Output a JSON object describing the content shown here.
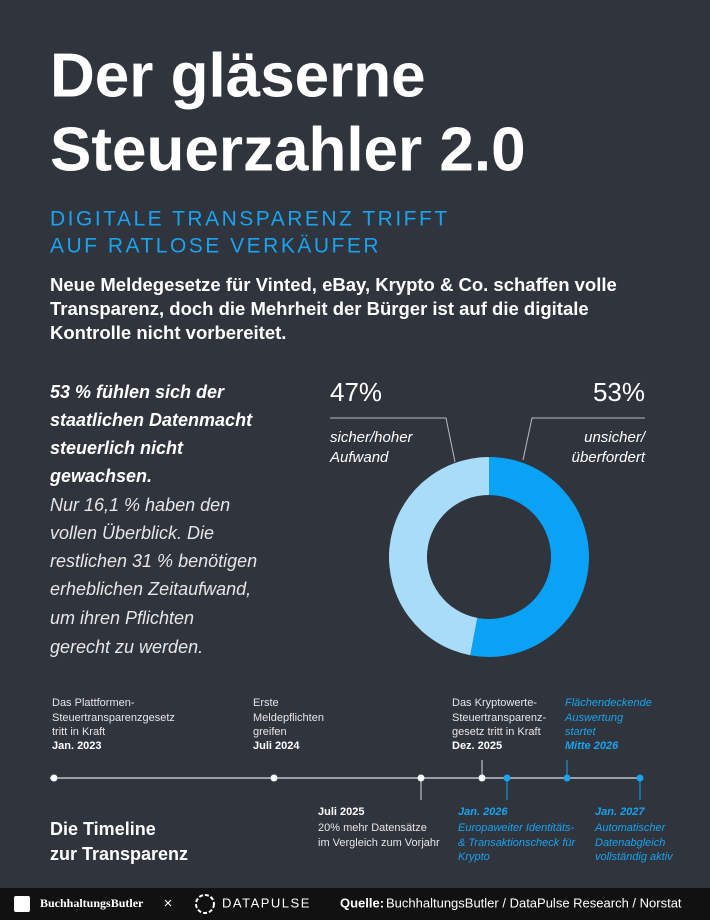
{
  "header": {
    "title": [
      "Der gläserne",
      "Steuerzahler 2.0"
    ],
    "subtitle": [
      "DIGITALE TRANSPARENZ TRIFFT",
      "AUF RATLOSE VERKÄUFER"
    ],
    "intro": [
      "Neue Meldegesetze für Vinted, eBay, Krypto & Co. schaffen volle",
      "Transparenz, doch die Mehrheit der Bürger ist auf die digitale",
      "Kontrolle nicht vorbereitet."
    ]
  },
  "highlight": {
    "bold": [
      "53 % fühlen sich der",
      "staatlichen Datenmacht",
      "steuerlich nicht",
      "gewachsen."
    ],
    "text": [
      "Nur 16,1 % haben den",
      "vollen Überblick. Die",
      "restlichen 31 % benötigen",
      "erheblichen Zeitaufwand,",
      "um ihren Pflichten",
      "gerecht zu werden."
    ]
  },
  "chart_data": {
    "type": "donut",
    "categories": [
      "sicher/hoher Aufwand",
      "unsicher/ überfordert"
    ],
    "values": [
      47,
      53
    ],
    "value_labels": [
      "47%",
      "53%"
    ],
    "colors": [
      "#a9dcf8",
      "#0aa2f5"
    ]
  },
  "timeline": {
    "title": [
      "Die Timeline",
      "zur Transparenz"
    ],
    "events": [
      {
        "lines": [
          "Das Plattformen-",
          "Steuertransparenzgesetz",
          "tritt in Kraft"
        ],
        "date": "Jan. 2023"
      },
      {
        "lines": [
          "Erste",
          "Meldepflichten",
          "greifen"
        ],
        "date": "Juli 2024"
      },
      {
        "date": "Juli 2025",
        "lines": [
          "20% mehr Datensätze",
          "im Vergleich zum Vorjahr"
        ]
      },
      {
        "lines": [
          "Das Kryptowerte-",
          "Steuertransparenz-",
          "gesetz tritt in Kraft"
        ],
        "date": "Dez. 2025"
      },
      {
        "date": "Jan. 2026",
        "lines": [
          "Europaweiter Identitäts-",
          "& Transaktionscheck für",
          "Krypto"
        ]
      },
      {
        "lines": [
          "Flächendeckende",
          "Auswertung",
          "startet"
        ],
        "date": "Mitte 2026"
      },
      {
        "date": "Jan. 2027",
        "lines": [
          "Automatischer",
          "Datenabgleich",
          "vollständig aktiv"
        ]
      }
    ]
  },
  "footer": {
    "logo1": "BuchhaltungsButler",
    "separator": "×",
    "logo2": "DATAPULSE",
    "source_label": "Quelle:",
    "source": "BuchhaltungsButler / DataPulse Research / Norstat"
  }
}
